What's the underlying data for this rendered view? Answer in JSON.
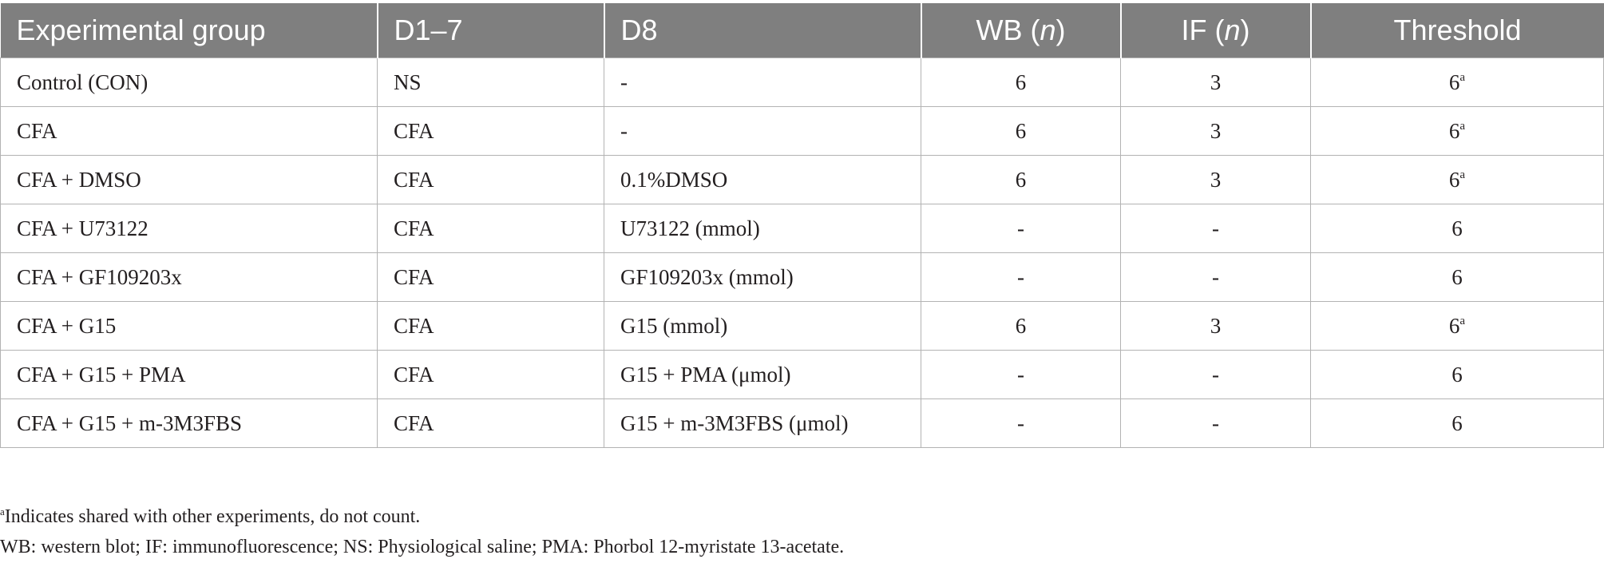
{
  "table": {
    "headers": {
      "group": "Experimental group",
      "d1_7": "D1–7",
      "d8": "D8",
      "wb_prefix": "WB (",
      "wb_n": "n",
      "wb_suffix": ")",
      "if_prefix": "IF (",
      "if_n": "n",
      "if_suffix": ")",
      "threshold": "Threshold"
    },
    "rows": [
      {
        "group": "Control (CON)",
        "d1_7": "NS",
        "d8": "-",
        "wb": "6",
        "if": "3",
        "threshold": "6",
        "threshold_sup": "a"
      },
      {
        "group": "CFA",
        "d1_7": "CFA",
        "d8": "-",
        "wb": "6",
        "if": "3",
        "threshold": "6",
        "threshold_sup": "a"
      },
      {
        "group": "CFA + DMSO",
        "d1_7": "CFA",
        "d8": "0.1%DMSO",
        "wb": "6",
        "if": "3",
        "threshold": "6",
        "threshold_sup": "a"
      },
      {
        "group": "CFA + U73122",
        "d1_7": "CFA",
        "d8": "U73122 (mmol)",
        "wb": "-",
        "if": "-",
        "threshold": "6",
        "threshold_sup": ""
      },
      {
        "group": "CFA + GF109203x",
        "d1_7": "CFA",
        "d8": "GF109203x (mmol)",
        "wb": "-",
        "if": "-",
        "threshold": "6",
        "threshold_sup": ""
      },
      {
        "group": "CFA + G15",
        "d1_7": "CFA",
        "d8": "G15 (mmol)",
        "wb": "6",
        "if": "3",
        "threshold": "6",
        "threshold_sup": "a"
      },
      {
        "group": "CFA + G15 + PMA",
        "d1_7": "CFA",
        "d8": "G15 + PMA (μmol)",
        "wb": "-",
        "if": "-",
        "threshold": "6",
        "threshold_sup": ""
      },
      {
        "group": "CFA + G15 + m-3M3FBS",
        "d1_7": "CFA",
        "d8": "G15 + m-3M3FBS (μmol)",
        "wb": "-",
        "if": "-",
        "threshold": "6",
        "threshold_sup": ""
      }
    ]
  },
  "footnotes": {
    "note_a_marker": "a",
    "note_a_text": "Indicates shared with other experiments, do not count.",
    "abbreviations": "WB: western blot; IF: immunofluorescence; NS: Physiological saline; PMA: Phorbol 12-myristate 13-acetate."
  }
}
